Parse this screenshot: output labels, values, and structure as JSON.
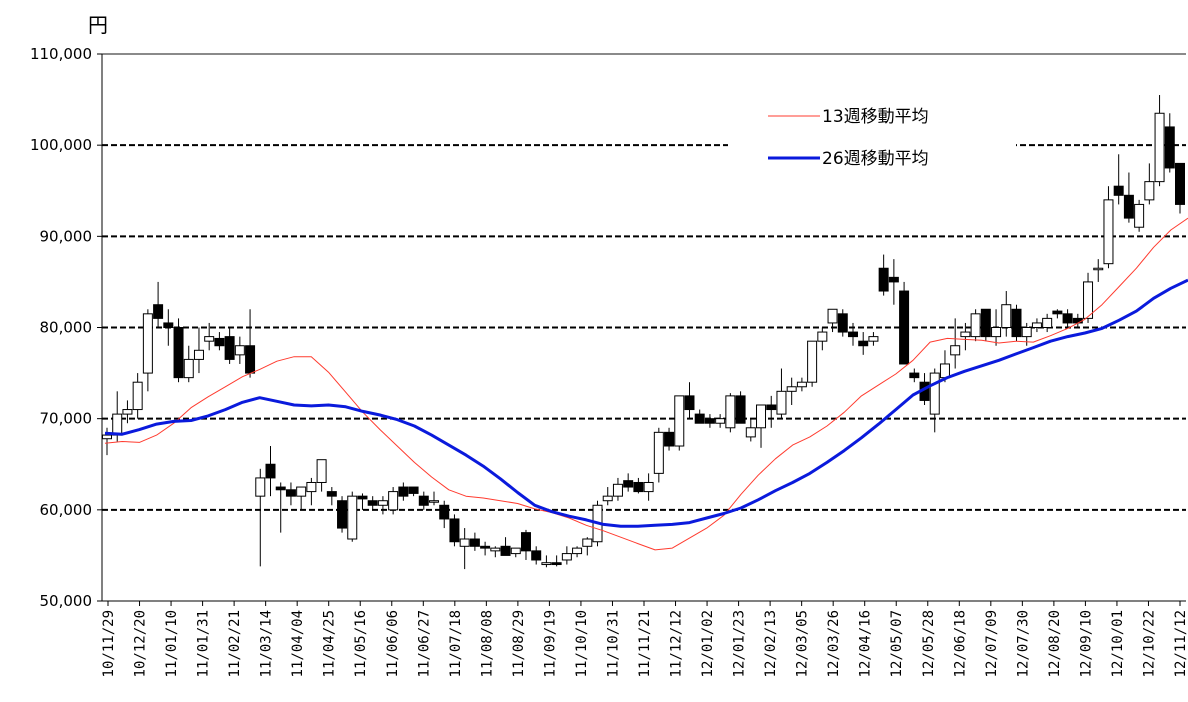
{
  "chart_data": {
    "type": "candlestick",
    "unit_label": "円",
    "ylim": [
      50000,
      110000
    ],
    "yticks": [
      50000,
      60000,
      70000,
      80000,
      90000,
      100000,
      110000
    ],
    "ytick_labels": [
      "50,000",
      "60,000",
      "70,000",
      "80,000",
      "90,000",
      "100,000",
      "110,000"
    ],
    "gridlines": [
      60000,
      70000,
      80000,
      90000,
      100000
    ],
    "xtick_labels": [
      "10/11/29",
      "10/12/20",
      "11/01/10",
      "11/01/31",
      "11/02/21",
      "11/03/14",
      "11/04/04",
      "11/04/25",
      "11/05/16",
      "11/06/06",
      "11/06/27",
      "11/07/18",
      "11/08/08",
      "11/08/29",
      "11/09/19",
      "11/10/10",
      "11/10/31",
      "11/11/21",
      "11/12/12",
      "12/01/02",
      "12/01/23",
      "12/02/13",
      "12/03/05",
      "12/03/26",
      "12/04/16",
      "12/05/07",
      "12/05/28",
      "12/06/18",
      "12/07/09",
      "12/07/30",
      "12/08/20",
      "12/09/10",
      "12/10/01",
      "12/10/22",
      "12/11/12"
    ],
    "candles": [
      {
        "o": 67800,
        "h": 69000,
        "l": 66000,
        "c": 68200
      },
      {
        "o": 68200,
        "h": 73000,
        "l": 67500,
        "c": 70500
      },
      {
        "o": 70500,
        "h": 72000,
        "l": 69500,
        "c": 71000
      },
      {
        "o": 71000,
        "h": 75000,
        "l": 70000,
        "c": 74000
      },
      {
        "o": 75000,
        "h": 82000,
        "l": 73000,
        "c": 81500
      },
      {
        "o": 82500,
        "h": 85000,
        "l": 80000,
        "c": 81000
      },
      {
        "o": 80500,
        "h": 82000,
        "l": 78000,
        "c": 80000
      },
      {
        "o": 80000,
        "h": 81000,
        "l": 74000,
        "c": 74500
      },
      {
        "o": 74500,
        "h": 78000,
        "l": 74000,
        "c": 76500
      },
      {
        "o": 76500,
        "h": 80000,
        "l": 75000,
        "c": 77500
      },
      {
        "o": 78500,
        "h": 80500,
        "l": 77500,
        "c": 79000
      },
      {
        "o": 78800,
        "h": 79500,
        "l": 77500,
        "c": 78000
      },
      {
        "o": 79000,
        "h": 80000,
        "l": 76000,
        "c": 76500
      },
      {
        "o": 77000,
        "h": 79000,
        "l": 76000,
        "c": 78000
      },
      {
        "o": 78000,
        "h": 82000,
        "l": 74500,
        "c": 75000
      },
      {
        "o": 61500,
        "h": 64500,
        "l": 53800,
        "c": 63500
      },
      {
        "o": 65000,
        "h": 67000,
        "l": 61500,
        "c": 63500
      },
      {
        "o": 62500,
        "h": 63000,
        "l": 57500,
        "c": 62200
      },
      {
        "o": 62200,
        "h": 63000,
        "l": 60500,
        "c": 61500
      },
      {
        "o": 61500,
        "h": 62500,
        "l": 60000,
        "c": 62500
      },
      {
        "o": 62000,
        "h": 63500,
        "l": 60500,
        "c": 63000
      },
      {
        "o": 63000,
        "h": 65500,
        "l": 62000,
        "c": 65500
      },
      {
        "o": 62000,
        "h": 62500,
        "l": 60500,
        "c": 61500
      },
      {
        "o": 61000,
        "h": 61500,
        "l": 57500,
        "c": 58000
      },
      {
        "o": 56800,
        "h": 62000,
        "l": 56500,
        "c": 61500
      },
      {
        "o": 61500,
        "h": 61800,
        "l": 60000,
        "c": 61200
      },
      {
        "o": 61000,
        "h": 61500,
        "l": 60000,
        "c": 60500
      },
      {
        "o": 60500,
        "h": 61500,
        "l": 59500,
        "c": 61000
      },
      {
        "o": 60000,
        "h": 62500,
        "l": 59500,
        "c": 62000
      },
      {
        "o": 62500,
        "h": 63000,
        "l": 61000,
        "c": 61500
      },
      {
        "o": 62500,
        "h": 62500,
        "l": 61500,
        "c": 61800
      },
      {
        "o": 61500,
        "h": 62000,
        "l": 60000,
        "c": 60500
      },
      {
        "o": 61000,
        "h": 62000,
        "l": 60500,
        "c": 61000
      },
      {
        "o": 60500,
        "h": 61000,
        "l": 58000,
        "c": 59000
      },
      {
        "o": 59000,
        "h": 59500,
        "l": 56000,
        "c": 56500
      },
      {
        "o": 56000,
        "h": 58000,
        "l": 53500,
        "c": 56800
      },
      {
        "o": 56800,
        "h": 57500,
        "l": 55500,
        "c": 56000
      },
      {
        "o": 56000,
        "h": 56500,
        "l": 55000,
        "c": 55800
      },
      {
        "o": 55500,
        "h": 56000,
        "l": 54800,
        "c": 55800
      },
      {
        "o": 56000,
        "h": 57000,
        "l": 55500,
        "c": 55000
      },
      {
        "o": 55200,
        "h": 55800,
        "l": 54800,
        "c": 55800
      },
      {
        "o": 57500,
        "h": 57800,
        "l": 54500,
        "c": 55500
      },
      {
        "o": 55500,
        "h": 56000,
        "l": 54000,
        "c": 54500
      },
      {
        "o": 54000,
        "h": 55000,
        "l": 53700,
        "c": 54200
      },
      {
        "o": 54200,
        "h": 55000,
        "l": 53800,
        "c": 54000
      },
      {
        "o": 54500,
        "h": 56000,
        "l": 54000,
        "c": 55200
      },
      {
        "o": 55200,
        "h": 56000,
        "l": 54800,
        "c": 55800
      },
      {
        "o": 56000,
        "h": 57000,
        "l": 55000,
        "c": 56800
      },
      {
        "o": 56500,
        "h": 61000,
        "l": 56000,
        "c": 60500
      },
      {
        "o": 61000,
        "h": 62500,
        "l": 60500,
        "c": 61500
      },
      {
        "o": 61500,
        "h": 63500,
        "l": 61000,
        "c": 62800
      },
      {
        "o": 63200,
        "h": 64000,
        "l": 62000,
        "c": 62500
      },
      {
        "o": 63000,
        "h": 63500,
        "l": 61800,
        "c": 62000
      },
      {
        "o": 62000,
        "h": 64000,
        "l": 61000,
        "c": 63000
      },
      {
        "o": 64000,
        "h": 69000,
        "l": 63000,
        "c": 68500
      },
      {
        "o": 68500,
        "h": 69000,
        "l": 66500,
        "c": 67000
      },
      {
        "o": 67000,
        "h": 72500,
        "l": 66500,
        "c": 72500
      },
      {
        "o": 72500,
        "h": 74000,
        "l": 70000,
        "c": 71000
      },
      {
        "o": 70500,
        "h": 71000,
        "l": 69500,
        "c": 69500
      },
      {
        "o": 70000,
        "h": 70500,
        "l": 69000,
        "c": 69500
      },
      {
        "o": 69500,
        "h": 70500,
        "l": 69000,
        "c": 70000
      },
      {
        "o": 69000,
        "h": 72800,
        "l": 68500,
        "c": 72500
      },
      {
        "o": 72500,
        "h": 73000,
        "l": 69500,
        "c": 69500
      },
      {
        "o": 68000,
        "h": 70000,
        "l": 67500,
        "c": 69000
      },
      {
        "o": 69000,
        "h": 71500,
        "l": 66800,
        "c": 71500
      },
      {
        "o": 71500,
        "h": 72500,
        "l": 69000,
        "c": 71000
      },
      {
        "o": 70500,
        "h": 75500,
        "l": 70000,
        "c": 73000
      },
      {
        "o": 73000,
        "h": 74500,
        "l": 71500,
        "c": 73500
      },
      {
        "o": 73500,
        "h": 74500,
        "l": 73000,
        "c": 74000
      },
      {
        "o": 74000,
        "h": 78500,
        "l": 73500,
        "c": 78500
      },
      {
        "o": 78500,
        "h": 80000,
        "l": 77500,
        "c": 79500
      },
      {
        "o": 80500,
        "h": 82000,
        "l": 79500,
        "c": 82000
      },
      {
        "o": 81500,
        "h": 82000,
        "l": 79000,
        "c": 79500
      },
      {
        "o": 79500,
        "h": 80500,
        "l": 78000,
        "c": 79000
      },
      {
        "o": 78500,
        "h": 79500,
        "l": 77000,
        "c": 78000
      },
      {
        "o": 78500,
        "h": 79500,
        "l": 78000,
        "c": 79000
      },
      {
        "o": 86500,
        "h": 88000,
        "l": 83500,
        "c": 84000
      },
      {
        "o": 85500,
        "h": 87500,
        "l": 82500,
        "c": 85000
      },
      {
        "o": 84000,
        "h": 85000,
        "l": 76000,
        "c": 76000
      },
      {
        "o": 75000,
        "h": 75500,
        "l": 74000,
        "c": 74500
      },
      {
        "o": 74000,
        "h": 75000,
        "l": 71500,
        "c": 72000
      },
      {
        "o": 70500,
        "h": 75500,
        "l": 68500,
        "c": 75000
      },
      {
        "o": 74500,
        "h": 77500,
        "l": 74000,
        "c": 76000
      },
      {
        "o": 77000,
        "h": 81000,
        "l": 75500,
        "c": 78000
      },
      {
        "o": 79000,
        "h": 80500,
        "l": 77500,
        "c": 79500
      },
      {
        "o": 79000,
        "h": 82000,
        "l": 78500,
        "c": 81500
      },
      {
        "o": 82000,
        "h": 82000,
        "l": 78500,
        "c": 79000
      },
      {
        "o": 79000,
        "h": 82000,
        "l": 78000,
        "c": 80000
      },
      {
        "o": 80000,
        "h": 84000,
        "l": 79000,
        "c": 82500
      },
      {
        "o": 82000,
        "h": 82500,
        "l": 78500,
        "c": 79000
      },
      {
        "o": 79000,
        "h": 80500,
        "l": 78000,
        "c": 80000
      },
      {
        "o": 80000,
        "h": 81000,
        "l": 79500,
        "c": 80500
      },
      {
        "o": 80000,
        "h": 81500,
        "l": 79500,
        "c": 81000
      },
      {
        "o": 81800,
        "h": 82000,
        "l": 81000,
        "c": 81500
      },
      {
        "o": 81500,
        "h": 82000,
        "l": 80000,
        "c": 80500
      },
      {
        "o": 81000,
        "h": 81500,
        "l": 80000,
        "c": 80500
      },
      {
        "o": 81000,
        "h": 86000,
        "l": 80500,
        "c": 85000
      },
      {
        "o": 86500,
        "h": 87500,
        "l": 85000,
        "c": 86500
      },
      {
        "o": 87000,
        "h": 95500,
        "l": 86500,
        "c": 94000
      },
      {
        "o": 95500,
        "h": 99000,
        "l": 93500,
        "c": 94500
      },
      {
        "o": 94500,
        "h": 97000,
        "l": 91500,
        "c": 92000
      },
      {
        "o": 91000,
        "h": 94000,
        "l": 90500,
        "c": 93500
      },
      {
        "o": 94000,
        "h": 98000,
        "l": 93500,
        "c": 96000
      },
      {
        "o": 96000,
        "h": 105500,
        "l": 95500,
        "c": 103500
      },
      {
        "o": 102000,
        "h": 103500,
        "l": 97000,
        "c": 97500
      },
      {
        "o": 98000,
        "h": 98000,
        "l": 92500,
        "c": 93500
      }
    ],
    "series": [
      {
        "name": "13週移動平均",
        "color": "#ff3b2f",
        "values": [
          67300,
          67500,
          67400,
          68200,
          69500,
          71200,
          72400,
          73500,
          74600,
          75400,
          76300,
          76800,
          76800,
          75100,
          72900,
          70700,
          68800,
          67000,
          65200,
          63600,
          62200,
          61500,
          61300,
          61000,
          60700,
          60100,
          59700,
          59100,
          58300,
          57700,
          57000,
          56300,
          55600,
          55800,
          56900,
          58000,
          59400,
          61700,
          63800,
          65600,
          67100,
          68000,
          69200,
          70700,
          72500,
          73700,
          74900,
          76400,
          78400,
          78800,
          78700,
          78600,
          78300,
          78500,
          78400,
          79100,
          79900,
          80900,
          82500,
          84500,
          86500,
          88800,
          90700,
          92000
        ]
      },
      {
        "name": "26週移動平均",
        "color": "#0a1adc",
        "values": [
          68400,
          68300,
          68800,
          69400,
          69700,
          69800,
          70300,
          71000,
          71800,
          72300,
          71900,
          71500,
          71400,
          71500,
          71300,
          70800,
          70400,
          69900,
          69200,
          68200,
          67100,
          66000,
          64800,
          63400,
          61900,
          60500,
          59800,
          59300,
          58900,
          58400,
          58200,
          58200,
          58300,
          58400,
          58600,
          59100,
          59600,
          60200,
          61100,
          62100,
          63000,
          64000,
          65200,
          66500,
          67900,
          69400,
          71000,
          72600,
          73600,
          74500,
          75200,
          75800,
          76400,
          77100,
          77800,
          78500,
          79000,
          79400,
          79900,
          80800,
          81800,
          83200,
          84300,
          85200
        ]
      }
    ]
  }
}
